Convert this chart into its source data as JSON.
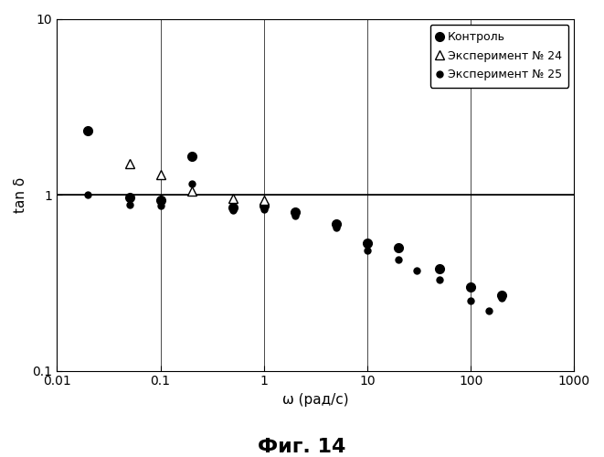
{
  "title": "Фиг. 14",
  "xlabel": "ω (рад/с)",
  "ylabel": "tan δ",
  "xlim": [
    0.01,
    1000
  ],
  "ylim": [
    0.1,
    10
  ],
  "series": {
    "control": {
      "label": "Контроль",
      "marker": "o",
      "color": "black",
      "markersize": 7,
      "x": [
        0.02,
        0.05,
        0.1,
        0.2,
        0.5,
        1.0,
        2.0,
        5.0,
        10.0,
        20.0,
        50.0,
        100.0,
        200.0
      ],
      "y": [
        2.3,
        0.97,
        0.93,
        1.65,
        0.85,
        0.87,
        0.8,
        0.68,
        0.53,
        0.5,
        0.38,
        0.3,
        0.27
      ]
    },
    "exp24": {
      "label": "Эксперимент № 24",
      "marker": "^",
      "color": "black",
      "markersize": 7,
      "markerfacecolor": "white",
      "x": [
        0.05,
        0.1,
        0.2,
        0.5,
        1.0
      ],
      "y": [
        1.5,
        1.3,
        1.05,
        0.95,
        0.93
      ]
    },
    "exp25": {
      "label": "Эксперимент № 25",
      "marker": "o",
      "color": "black",
      "markersize": 5,
      "x": [
        0.02,
        0.05,
        0.1,
        0.2,
        0.5,
        1.0,
        2.0,
        5.0,
        10.0,
        20.0,
        30.0,
        50.0,
        100.0,
        150.0,
        200.0
      ],
      "y": [
        1.0,
        0.88,
        0.87,
        1.15,
        0.82,
        0.83,
        0.76,
        0.65,
        0.48,
        0.43,
        0.37,
        0.33,
        0.25,
        0.22,
        0.26
      ]
    }
  },
  "background_color": "#ffffff",
  "legend_fontsize": 9,
  "axis_fontsize": 11,
  "title_fontsize": 16
}
